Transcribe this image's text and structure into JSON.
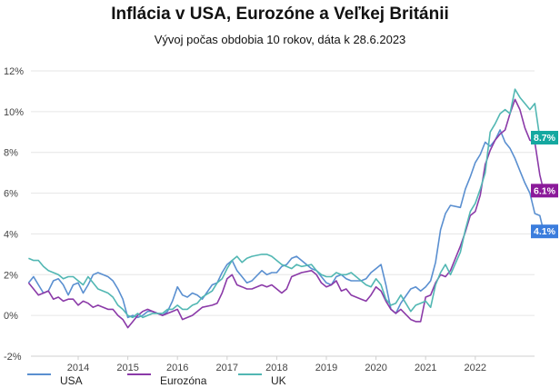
{
  "chart_data": {
    "type": "line",
    "title": "Inflácia v USA, Eurozóne a Veľkej Británii",
    "subtitle": "Vývoj počas obdobia 10 rokov, dáta k 28.6.2023",
    "xlabel": "",
    "ylabel": "",
    "xlim": [
      2013.0,
      2023.2
    ],
    "ylim": [
      -2,
      12
    ],
    "x_ticks": [
      2014,
      2015,
      2016,
      2017,
      2018,
      2019,
      2020,
      2021,
      2022
    ],
    "x_tick_labels": [
      "2014",
      "2015",
      "2016",
      "2017",
      "2018",
      "2019",
      "2020",
      "2021",
      "2022"
    ],
    "y_ticks": [
      -2,
      0,
      2,
      4,
      6,
      8,
      10,
      12
    ],
    "y_tick_labels": [
      "-2%",
      "0%",
      "2%",
      "4%",
      "6%",
      "8%",
      "10%",
      "12%"
    ],
    "grid": "horizontal",
    "legend": "bottom",
    "series": [
      {
        "name": "USA",
        "color": "#5a8fd0",
        "end_label": "4.1%",
        "end_label_color": "#3b7ddd",
        "points": [
          [
            2013.0,
            1.6
          ],
          [
            2013.1,
            1.9
          ],
          [
            2013.2,
            1.5
          ],
          [
            2013.3,
            1.1
          ],
          [
            2013.4,
            1.2
          ],
          [
            2013.5,
            1.7
          ],
          [
            2013.6,
            1.8
          ],
          [
            2013.7,
            1.5
          ],
          [
            2013.8,
            1.0
          ],
          [
            2013.9,
            1.5
          ],
          [
            2014.0,
            1.6
          ],
          [
            2014.1,
            1.1
          ],
          [
            2014.2,
            1.5
          ],
          [
            2014.3,
            2.0
          ],
          [
            2014.4,
            2.1
          ],
          [
            2014.6,
            1.9
          ],
          [
            2014.7,
            1.7
          ],
          [
            2014.8,
            1.3
          ],
          [
            2014.9,
            0.8
          ],
          [
            2015.0,
            -0.1
          ],
          [
            2015.1,
            0.0
          ],
          [
            2015.2,
            -0.1
          ],
          [
            2015.3,
            0.0
          ],
          [
            2015.4,
            0.2
          ],
          [
            2015.5,
            0.2
          ],
          [
            2015.7,
            0.0
          ],
          [
            2015.8,
            0.2
          ],
          [
            2015.9,
            0.7
          ],
          [
            2016.0,
            1.4
          ],
          [
            2016.1,
            1.0
          ],
          [
            2016.2,
            0.9
          ],
          [
            2016.3,
            1.1
          ],
          [
            2016.4,
            1.0
          ],
          [
            2016.5,
            0.8
          ],
          [
            2016.7,
            1.5
          ],
          [
            2016.8,
            1.6
          ],
          [
            2016.9,
            2.1
          ],
          [
            2017.0,
            2.5
          ],
          [
            2017.1,
            2.7
          ],
          [
            2017.2,
            2.2
          ],
          [
            2017.3,
            1.9
          ],
          [
            2017.4,
            1.6
          ],
          [
            2017.5,
            1.7
          ],
          [
            2017.7,
            2.2
          ],
          [
            2017.8,
            2.0
          ],
          [
            2017.9,
            2.1
          ],
          [
            2018.0,
            2.1
          ],
          [
            2018.1,
            2.4
          ],
          [
            2018.2,
            2.5
          ],
          [
            2018.3,
            2.8
          ],
          [
            2018.4,
            2.9
          ],
          [
            2018.5,
            2.7
          ],
          [
            2018.7,
            2.3
          ],
          [
            2018.8,
            2.2
          ],
          [
            2018.9,
            1.9
          ],
          [
            2019.0,
            1.6
          ],
          [
            2019.1,
            1.5
          ],
          [
            2019.2,
            1.9
          ],
          [
            2019.3,
            2.0
          ],
          [
            2019.4,
            1.8
          ],
          [
            2019.5,
            1.7
          ],
          [
            2019.7,
            1.7
          ],
          [
            2019.8,
            1.8
          ],
          [
            2019.9,
            2.1
          ],
          [
            2020.0,
            2.3
          ],
          [
            2020.1,
            2.5
          ],
          [
            2020.2,
            1.5
          ],
          [
            2020.3,
            0.3
          ],
          [
            2020.4,
            0.1
          ],
          [
            2020.5,
            0.6
          ],
          [
            2020.7,
            1.3
          ],
          [
            2020.8,
            1.4
          ],
          [
            2020.9,
            1.2
          ],
          [
            2021.0,
            1.4
          ],
          [
            2021.1,
            1.7
          ],
          [
            2021.2,
            2.6
          ],
          [
            2021.3,
            4.2
          ],
          [
            2021.4,
            5.0
          ],
          [
            2021.5,
            5.4
          ],
          [
            2021.7,
            5.3
          ],
          [
            2021.8,
            6.2
          ],
          [
            2021.9,
            6.8
          ],
          [
            2022.0,
            7.5
          ],
          [
            2022.1,
            7.9
          ],
          [
            2022.2,
            8.5
          ],
          [
            2022.3,
            8.3
          ],
          [
            2022.4,
            8.6
          ],
          [
            2022.5,
            9.1
          ],
          [
            2022.6,
            8.5
          ],
          [
            2022.7,
            8.2
          ],
          [
            2022.8,
            7.7
          ],
          [
            2022.9,
            7.1
          ],
          [
            2023.0,
            6.5
          ],
          [
            2023.1,
            6.0
          ],
          [
            2023.2,
            5.0
          ],
          [
            2023.3,
            4.9
          ],
          [
            2023.38,
            4.1
          ]
        ]
      },
      {
        "name": "Eurozóna",
        "color": "#8b3aa8",
        "end_label": "6.1%",
        "end_label_color": "#8b1a9a",
        "points": [
          [
            2013.0,
            1.6
          ],
          [
            2013.1,
            1.3
          ],
          [
            2013.2,
            1.0
          ],
          [
            2013.3,
            1.1
          ],
          [
            2013.4,
            1.2
          ],
          [
            2013.5,
            0.8
          ],
          [
            2013.6,
            0.9
          ],
          [
            2013.7,
            0.7
          ],
          [
            2013.8,
            0.8
          ],
          [
            2013.9,
            0.8
          ],
          [
            2014.0,
            0.5
          ],
          [
            2014.1,
            0.7
          ],
          [
            2014.2,
            0.6
          ],
          [
            2014.3,
            0.4
          ],
          [
            2014.4,
            0.5
          ],
          [
            2014.6,
            0.3
          ],
          [
            2014.7,
            0.3
          ],
          [
            2014.8,
            0.0
          ],
          [
            2014.9,
            -0.2
          ],
          [
            2015.0,
            -0.6
          ],
          [
            2015.1,
            -0.3
          ],
          [
            2015.2,
            0.0
          ],
          [
            2015.3,
            0.2
          ],
          [
            2015.4,
            0.3
          ],
          [
            2015.5,
            0.2
          ],
          [
            2015.7,
            0.0
          ],
          [
            2015.8,
            0.1
          ],
          [
            2015.9,
            0.2
          ],
          [
            2016.0,
            0.3
          ],
          [
            2016.1,
            -0.2
          ],
          [
            2016.2,
            -0.1
          ],
          [
            2016.3,
            0.0
          ],
          [
            2016.4,
            0.2
          ],
          [
            2016.5,
            0.4
          ],
          [
            2016.7,
            0.5
          ],
          [
            2016.8,
            0.6
          ],
          [
            2016.9,
            1.1
          ],
          [
            2017.0,
            1.8
          ],
          [
            2017.1,
            2.0
          ],
          [
            2017.2,
            1.5
          ],
          [
            2017.3,
            1.4
          ],
          [
            2017.4,
            1.3
          ],
          [
            2017.5,
            1.3
          ],
          [
            2017.7,
            1.5
          ],
          [
            2017.8,
            1.4
          ],
          [
            2017.9,
            1.5
          ],
          [
            2018.0,
            1.3
          ],
          [
            2018.1,
            1.1
          ],
          [
            2018.2,
            1.3
          ],
          [
            2018.3,
            1.9
          ],
          [
            2018.4,
            2.0
          ],
          [
            2018.5,
            2.1
          ],
          [
            2018.7,
            2.2
          ],
          [
            2018.8,
            2.0
          ],
          [
            2018.9,
            1.6
          ],
          [
            2019.0,
            1.4
          ],
          [
            2019.1,
            1.5
          ],
          [
            2019.2,
            1.7
          ],
          [
            2019.3,
            1.2
          ],
          [
            2019.4,
            1.3
          ],
          [
            2019.5,
            1.0
          ],
          [
            2019.7,
            0.8
          ],
          [
            2019.8,
            0.7
          ],
          [
            2019.9,
            1.0
          ],
          [
            2020.0,
            1.4
          ],
          [
            2020.1,
            1.2
          ],
          [
            2020.2,
            0.7
          ],
          [
            2020.3,
            0.3
          ],
          [
            2020.4,
            0.1
          ],
          [
            2020.5,
            0.3
          ],
          [
            2020.7,
            -0.2
          ],
          [
            2020.8,
            -0.3
          ],
          [
            2020.9,
            -0.3
          ],
          [
            2021.0,
            0.9
          ],
          [
            2021.1,
            1.0
          ],
          [
            2021.2,
            1.6
          ],
          [
            2021.3,
            2.0
          ],
          [
            2021.4,
            1.9
          ],
          [
            2021.5,
            2.2
          ],
          [
            2021.7,
            3.4
          ],
          [
            2021.8,
            4.1
          ],
          [
            2021.9,
            4.9
          ],
          [
            2022.0,
            5.1
          ],
          [
            2022.1,
            5.9
          ],
          [
            2022.2,
            7.4
          ],
          [
            2022.3,
            8.1
          ],
          [
            2022.4,
            8.6
          ],
          [
            2022.5,
            8.9
          ],
          [
            2022.6,
            9.1
          ],
          [
            2022.7,
            9.9
          ],
          [
            2022.8,
            10.6
          ],
          [
            2022.9,
            10.1
          ],
          [
            2023.0,
            9.2
          ],
          [
            2023.1,
            8.6
          ],
          [
            2023.2,
            8.5
          ],
          [
            2023.3,
            6.9
          ],
          [
            2023.38,
            6.1
          ]
        ]
      },
      {
        "name": "UK",
        "color": "#52b7b3",
        "end_label": "8.7%",
        "end_label_color": "#15a8a0",
        "points": [
          [
            2013.0,
            2.8
          ],
          [
            2013.1,
            2.7
          ],
          [
            2013.2,
            2.7
          ],
          [
            2013.3,
            2.4
          ],
          [
            2013.4,
            2.2
          ],
          [
            2013.5,
            2.1
          ],
          [
            2013.6,
            2.0
          ],
          [
            2013.7,
            1.8
          ],
          [
            2013.8,
            1.9
          ],
          [
            2013.9,
            1.9
          ],
          [
            2014.0,
            1.7
          ],
          [
            2014.1,
            1.5
          ],
          [
            2014.2,
            1.9
          ],
          [
            2014.3,
            1.6
          ],
          [
            2014.4,
            1.3
          ],
          [
            2014.6,
            1.1
          ],
          [
            2014.7,
            0.9
          ],
          [
            2014.8,
            0.5
          ],
          [
            2014.9,
            0.3
          ],
          [
            2015.0,
            0.0
          ],
          [
            2015.1,
            -0.1
          ],
          [
            2015.2,
            0.1
          ],
          [
            2015.3,
            -0.1
          ],
          [
            2015.4,
            0.0
          ],
          [
            2015.5,
            0.1
          ],
          [
            2015.7,
            0.1
          ],
          [
            2015.8,
            0.3
          ],
          [
            2015.9,
            0.3
          ],
          [
            2016.0,
            0.5
          ],
          [
            2016.1,
            0.3
          ],
          [
            2016.2,
            0.3
          ],
          [
            2016.3,
            0.5
          ],
          [
            2016.4,
            0.6
          ],
          [
            2016.5,
            0.9
          ],
          [
            2016.7,
            1.2
          ],
          [
            2016.8,
            1.6
          ],
          [
            2016.9,
            1.8
          ],
          [
            2017.0,
            2.3
          ],
          [
            2017.1,
            2.7
          ],
          [
            2017.2,
            2.9
          ],
          [
            2017.3,
            2.6
          ],
          [
            2017.4,
            2.8
          ],
          [
            2017.5,
            2.9
          ],
          [
            2017.7,
            3.0
          ],
          [
            2017.8,
            3.0
          ],
          [
            2017.9,
            2.9
          ],
          [
            2018.0,
            2.7
          ],
          [
            2018.1,
            2.5
          ],
          [
            2018.2,
            2.4
          ],
          [
            2018.3,
            2.3
          ],
          [
            2018.4,
            2.5
          ],
          [
            2018.5,
            2.4
          ],
          [
            2018.7,
            2.5
          ],
          [
            2018.8,
            2.2
          ],
          [
            2018.9,
            2.0
          ],
          [
            2019.0,
            1.9
          ],
          [
            2019.1,
            1.9
          ],
          [
            2019.2,
            2.1
          ],
          [
            2019.3,
            2.0
          ],
          [
            2019.4,
            2.0
          ],
          [
            2019.5,
            2.1
          ],
          [
            2019.7,
            1.7
          ],
          [
            2019.8,
            1.5
          ],
          [
            2019.9,
            1.4
          ],
          [
            2020.0,
            1.8
          ],
          [
            2020.1,
            1.5
          ],
          [
            2020.2,
            0.8
          ],
          [
            2020.3,
            0.5
          ],
          [
            2020.4,
            0.6
          ],
          [
            2020.5,
            1.0
          ],
          [
            2020.7,
            0.2
          ],
          [
            2020.8,
            0.5
          ],
          [
            2020.9,
            0.6
          ],
          [
            2021.0,
            0.7
          ],
          [
            2021.1,
            0.4
          ],
          [
            2021.2,
            1.5
          ],
          [
            2021.3,
            2.1
          ],
          [
            2021.4,
            2.5
          ],
          [
            2021.5,
            2.0
          ],
          [
            2021.7,
            3.1
          ],
          [
            2021.8,
            4.2
          ],
          [
            2021.9,
            5.1
          ],
          [
            2022.0,
            5.5
          ],
          [
            2022.1,
            6.2
          ],
          [
            2022.2,
            7.0
          ],
          [
            2022.3,
            9.0
          ],
          [
            2022.4,
            9.4
          ],
          [
            2022.5,
            9.9
          ],
          [
            2022.6,
            10.1
          ],
          [
            2022.7,
            9.9
          ],
          [
            2022.8,
            11.1
          ],
          [
            2022.9,
            10.7
          ],
          [
            2023.0,
            10.4
          ],
          [
            2023.1,
            10.1
          ],
          [
            2023.2,
            10.4
          ],
          [
            2023.3,
            8.7
          ],
          [
            2023.38,
            8.7
          ]
        ]
      }
    ]
  }
}
